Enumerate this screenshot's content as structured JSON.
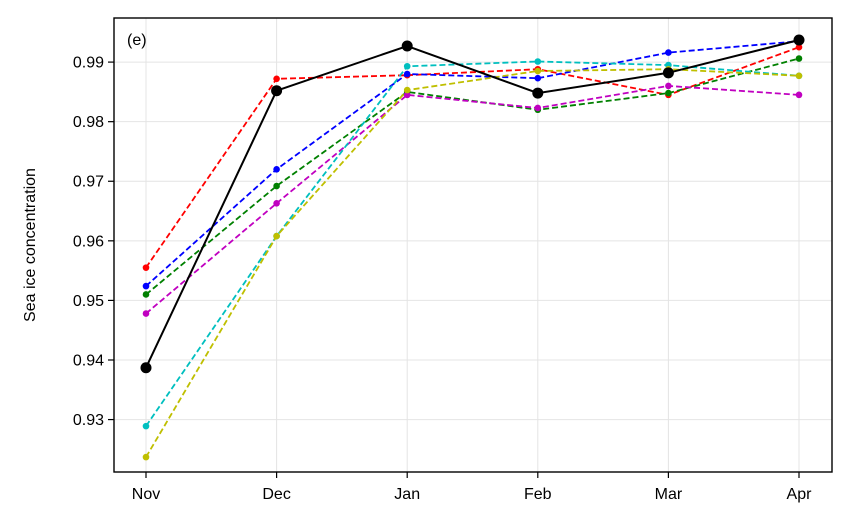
{
  "chart_data": {
    "type": "line",
    "panel_label": "(e)",
    "title": "",
    "xlabel": "",
    "ylabel": "Sea ice concentration",
    "categories": [
      "Nov",
      "Dec",
      "Jan",
      "Feb",
      "Mar",
      "Apr"
    ],
    "yticks": [
      "0.93",
      "0.94",
      "0.95",
      "0.96",
      "0.97",
      "0.98",
      "0.99"
    ],
    "ytick_values": [
      0.93,
      0.94,
      0.95,
      0.96,
      0.97,
      0.98,
      0.99
    ],
    "ylim": [
      0.9212,
      0.9974
    ],
    "grid": true,
    "series": [
      {
        "color": "#ff0000",
        "style": "dashed",
        "values": [
          0.9555,
          0.9872,
          0.9878,
          0.9888,
          0.9845,
          0.9925
        ]
      },
      {
        "color": "#0000ff",
        "style": "dashed",
        "values": [
          0.9524,
          0.972,
          0.988,
          0.9873,
          0.9916,
          0.9935
        ]
      },
      {
        "color": "#008000",
        "style": "dashed",
        "values": [
          0.951,
          0.9692,
          0.985,
          0.982,
          0.9848,
          0.9906
        ]
      },
      {
        "color": "#c000c0",
        "style": "dashed",
        "values": [
          0.9478,
          0.9663,
          0.9845,
          0.9823,
          0.986,
          0.9845
        ]
      },
      {
        "color": "#00bfbf",
        "style": "dashed",
        "values": [
          0.9289,
          0.9608,
          0.9893,
          0.9901,
          0.9895,
          0.9877
        ]
      },
      {
        "color": "#bfbf00",
        "style": "dashed",
        "values": [
          0.9237,
          0.9608,
          0.9853,
          0.9885,
          0.9888,
          0.9877
        ]
      },
      {
        "color": "#000000",
        "style": "solid",
        "values": [
          0.9387,
          0.9852,
          0.9927,
          0.9848,
          0.9882,
          0.9937
        ]
      }
    ]
  }
}
